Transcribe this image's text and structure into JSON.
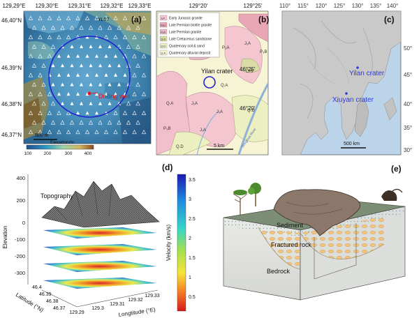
{
  "panel_a": {
    "letter": "(a)",
    "top_ticks": [
      "129,29°E",
      "129,30°E",
      "129,31°E",
      "129,32°E",
      "129,33°E"
    ],
    "left_ticks": [
      "46,40°N",
      "46,39°N",
      "46,38°N",
      "46,37°N"
    ],
    "station_label": "YL67",
    "drill_label": "Drilling well",
    "scale_label": "500 m",
    "colorbar_title": "Elevation/m",
    "colorbar_ticks": [
      "100",
      "200",
      "300",
      "400"
    ],
    "colors": {
      "ring": "#2222cc",
      "drill": "#e8141e",
      "terrain_low": "#3e86b2",
      "terrain_high": "#8a6a2e"
    }
  },
  "panel_b": {
    "letter": "(b)",
    "top_ticks": [
      "129°20'",
      "129°25'"
    ],
    "right_ticks": [
      "46°25'",
      "46°20'"
    ],
    "crater_label": "Yilan crater",
    "scale_label": "5 km",
    "legend": [
      {
        "code": "J₁A",
        "text": "Early Jurassic granite",
        "color": "#f4c6d0"
      },
      {
        "code": "P₃U",
        "text": "Late Permian biotite granite",
        "color": "#e9a6b6"
      },
      {
        "code": "P₃A",
        "text": "Late Permian granite",
        "color": "#e5b8c4"
      },
      {
        "code": "Q₁S",
        "text": "Late Cretaceous sandstone",
        "color": "#d9dca4"
      },
      {
        "code": "Q.D",
        "text": "Quaternary soil & sand",
        "color": "#ecefc0"
      },
      {
        "code": "Q.A",
        "text": "Quaternary alluvial deposit",
        "color": "#f6f4d4"
      }
    ],
    "map_codes": [
      "P₃A",
      "J₁A",
      "CrS",
      "P₃B",
      "Q.A",
      "J₁A",
      "Q.A",
      "Q.D",
      "J₁A",
      "P₃B",
      "Q.D",
      "J₁A"
    ],
    "river_label": "Songhua River"
  },
  "panel_c": {
    "letter": "(c)",
    "top_ticks": [
      "110°",
      "115°",
      "120°",
      "125°",
      "130°",
      "135°",
      "140°"
    ],
    "right_ticks": [
      "50°",
      "45°",
      "40°",
      "35°",
      "30°"
    ],
    "yilan_label": "Yilan crater",
    "xiuyan_label": "Xiuyan crater",
    "scale_label": "500 km",
    "colors": {
      "label": "#2b3bd6",
      "sea": "#bcd4ea"
    }
  },
  "panel_d": {
    "letter": "(d)",
    "topography_label": "Topography",
    "z_axis_label": "Elevation",
    "z_ticks": [
      "400",
      "200",
      "0",
      "-100",
      "-200",
      "-300"
    ],
    "lat_label": "Latitude (°N)",
    "lat_ticks": [
      "46.4",
      "46.39",
      "46.38",
      "46.37"
    ],
    "lon_label": "Longtitude (°E)",
    "lon_ticks": [
      "129.29",
      "129.3",
      "129.31",
      "129.32",
      "129.33"
    ],
    "colorbar_label": "Velocity (km/s)",
    "colorbar_ticks": [
      "3.5",
      "3",
      "2.5",
      "2",
      "1.5",
      "1",
      "0.5"
    ]
  },
  "panel_e": {
    "letter": "(e)",
    "sediment_label": "Sediment",
    "fractured_label": "Fractured rock",
    "bedrock_label": "Bedrock"
  }
}
